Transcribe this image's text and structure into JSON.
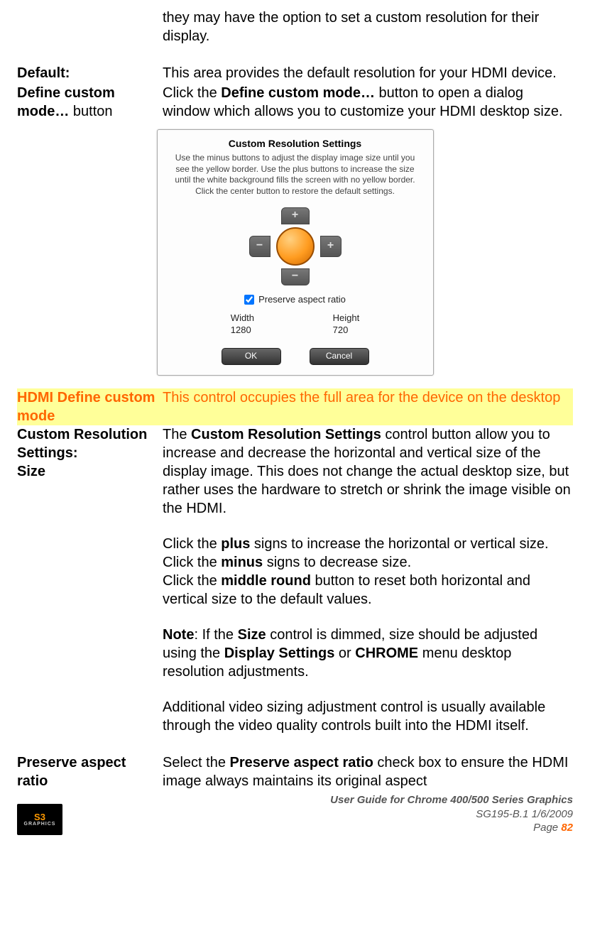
{
  "topFragment": "they may have the option to set a custom resolution for their display.",
  "rows": {
    "default": {
      "label": "Default:",
      "desc": "This area provides the default resolution for your HDMI device."
    },
    "defineCustom": {
      "labelBold": "Define custom mode…",
      "labelNormal": " button",
      "desc1": "Click the ",
      "bold1": "Define custom mode…",
      "desc2": " button to open a dialog window which allows you to customize your HDMI desktop size."
    },
    "hdmiDefine": {
      "label": "HDMI Define custom mode",
      "desc": "This control occupies the full area for the device on the desktop"
    },
    "customRes": {
      "label": "Custom Resolution Settings:\nSize",
      "p1a": "The ",
      "p1b": "Custom Resolution Settings",
      "p1c": " control button allow you to increase and decrease the horizontal and vertical size of the display image. This does not change the actual desktop size, but rather uses the hardware to stretch or shrink the image visible on the HDMI.",
      "p2a": "Click the ",
      "p2b": "plus",
      "p2c": " signs to increase the horizontal or vertical size.",
      "p3a": "Click the ",
      "p3b": "minus",
      "p3c": " signs to decrease size.",
      "p4a": "Click the ",
      "p4b": "middle round",
      "p4c": " button to reset both horizontal and vertical size to the default values.",
      "p5a": "Note",
      "p5b": ": If the ",
      "p5c": "Size",
      "p5d": " control is dimmed, size should be adjusted using the ",
      "p5e": "Display Settings",
      "p5f": " or ",
      "p5g": "CHROME",
      "p5h": " menu desktop resolution adjustments.",
      "p6": "Additional video sizing adjustment control is usually available through the video quality controls built into the HDMI itself."
    },
    "preserve": {
      "label": "Preserve aspect ratio",
      "d1": "Select the ",
      "d2": "Preserve aspect ratio",
      "d3": " check box to ensure the HDMI image always maintains its original aspect"
    }
  },
  "dialog": {
    "title": "Custom Resolution Settings",
    "desc": "Use the minus buttons to adjust the display image size until you see the yellow border. Use the plus buttons to increase the size until the white background fills the screen with no yellow border. Click the center button to restore the default settings.",
    "plus": "+",
    "minus": "−",
    "preserveLabel": "Preserve aspect ratio",
    "widthLabel": "Width",
    "widthVal": "1280",
    "heightLabel": "Height",
    "heightVal": "720",
    "ok": "OK",
    "cancel": "Cancel"
  },
  "footer": {
    "logoTop": "S3",
    "logoBottom": "GRAPHICS",
    "line1": "User Guide for Chrome 400/500 Series Graphics",
    "line2": "SG195-B.1   1/6/2009",
    "pageLabel": "Page ",
    "pageNum": "82"
  },
  "colors": {
    "highlightBg": "#ffff99",
    "highlightText": "#ff6600",
    "footerAccent": "#ff6600"
  }
}
